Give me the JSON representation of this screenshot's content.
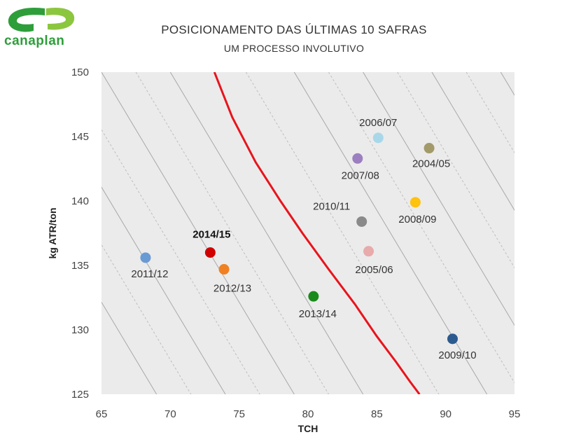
{
  "logo": {
    "text": "canaplan",
    "color": "#2e9e3a"
  },
  "chart_data": {
    "type": "scatter",
    "title": "POSICIONAMENTO DAS ÚLTIMAS 10 SAFRAS",
    "subtitle": "UM PROCESSO INVOLUTIVO",
    "xlabel": "TCH",
    "ylabel": "kg ATR/ton",
    "xlim": [
      65,
      95
    ],
    "ylim": [
      125,
      150
    ],
    "xticks": [
      "65",
      "70",
      "75",
      "80",
      "85",
      "90",
      "95"
    ],
    "yticks": [
      "125",
      "130",
      "135",
      "140",
      "145",
      "150"
    ],
    "plot_background": "#ebebeb",
    "points": [
      {
        "label": "2006/07",
        "x": 85.1,
        "y": 144.9,
        "color": "#a9d7ea",
        "bold": false
      },
      {
        "label": "2004/05",
        "x": 88.8,
        "y": 144.1,
        "color": "#a39a6a",
        "bold": false
      },
      {
        "label": "2007/08",
        "x": 83.6,
        "y": 143.3,
        "color": "#9c7fc0",
        "bold": false
      },
      {
        "label": "2008/09",
        "x": 87.8,
        "y": 139.9,
        "color": "#ffc20e",
        "bold": false
      },
      {
        "label": "2010/11",
        "x": 83.9,
        "y": 138.4,
        "color": "#8a8a8a",
        "bold": false
      },
      {
        "label": "2005/06",
        "x": 84.4,
        "y": 136.1,
        "color": "#e8aaaa",
        "bold": false
      },
      {
        "label": "2014/15",
        "x": 72.9,
        "y": 136.0,
        "color": "#d00000",
        "bold": true
      },
      {
        "label": "2011/12",
        "x": 68.2,
        "y": 135.6,
        "color": "#6a9ad4",
        "bold": false
      },
      {
        "label": "2012/13",
        "x": 73.9,
        "y": 134.7,
        "color": "#f08022",
        "bold": false
      },
      {
        "label": "2013/14",
        "x": 80.4,
        "y": 132.6,
        "color": "#1a8a1a",
        "bold": false
      },
      {
        "label": "2009/10",
        "x": 90.5,
        "y": 129.3,
        "color": "#2d5a8e",
        "bold": false
      }
    ],
    "reference_curve": {
      "color": "#e8141c",
      "x": [
        73.2,
        74.5,
        76.2,
        78.0,
        79.6,
        81.5,
        83.4,
        85.0,
        86.4,
        87.4,
        88.1
      ],
      "y": [
        150,
        146.5,
        143,
        140,
        137.5,
        134.7,
        132,
        129.5,
        127.5,
        126,
        125
      ]
    },
    "iso_lines": {
      "color_solid": "#a8a8a8",
      "color_dashed": "#bdbdbd",
      "x_at_top": [
        55,
        57.5,
        60,
        62.5,
        65,
        67.5,
        70,
        75.5,
        79,
        81.5,
        84,
        86.5,
        89,
        91.5,
        94,
        96.5,
        99
      ],
      "x_at_bottom": [
        69,
        71.5,
        74,
        76.5,
        79,
        81.5,
        84,
        89.5,
        93,
        95.5,
        98,
        100.5,
        103,
        105.5,
        108,
        110.5,
        113
      ],
      "dashed": [
        false,
        true,
        false,
        true,
        false,
        true,
        false,
        true,
        false,
        true,
        false,
        true,
        false,
        true,
        false,
        true,
        false
      ]
    }
  }
}
